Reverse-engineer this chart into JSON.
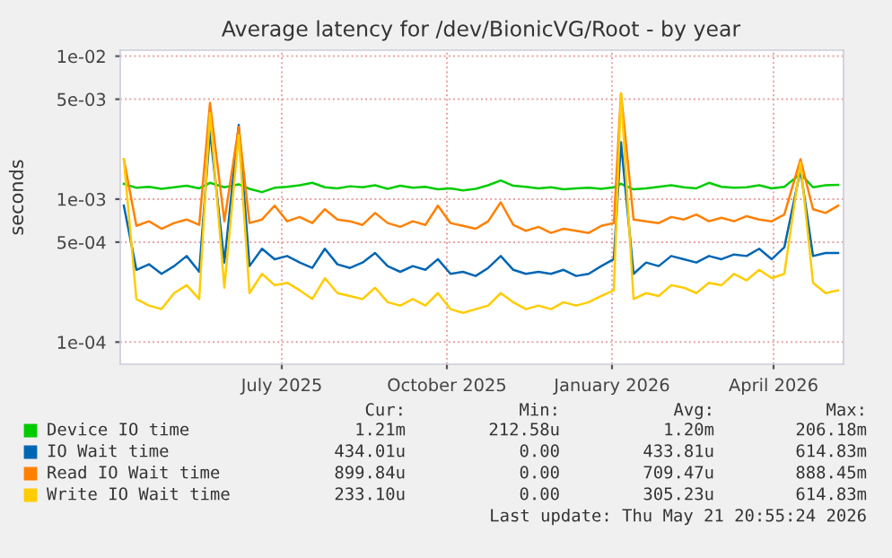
{
  "chart_data": {
    "type": "line",
    "title": "Average latency for /dev/BionicVG/Root - by year",
    "ylabel": "seconds",
    "log": "y",
    "grid": true,
    "legend": "bottom",
    "marker": "none",
    "line_style": "solid",
    "xlim": [
      "2025-04-02",
      "2026-05-10"
    ],
    "xticks": [
      {
        "value": "2025-07-01",
        "label": "July 2025"
      },
      {
        "value": "2025-10-01",
        "label": "October 2025"
      },
      {
        "value": "2026-01-01",
        "label": "January 2026"
      },
      {
        "value": "2026-04-01",
        "label": "April 2026"
      }
    ],
    "ylim": [
      7e-05,
      0.011
    ],
    "yticks": [
      {
        "value": 0.0001,
        "label": "1e-04"
      },
      {
        "value": 0.0005,
        "label": "5e-04"
      },
      {
        "value": 0.001,
        "label": "1e-03"
      },
      {
        "value": 0.005,
        "label": "5e-03"
      },
      {
        "value": 0.01,
        "label": "1e-02"
      }
    ],
    "x": [
      "2025-04-04",
      "2025-04-11",
      "2025-04-18",
      "2025-04-25",
      "2025-05-02",
      "2025-05-09",
      "2025-05-16",
      "2025-05-22",
      "2025-05-30",
      "2025-06-07",
      "2025-06-13",
      "2025-06-20",
      "2025-06-27",
      "2025-07-04",
      "2025-07-11",
      "2025-07-18",
      "2025-07-25",
      "2025-08-01",
      "2025-08-08",
      "2025-08-15",
      "2025-08-22",
      "2025-08-29",
      "2025-09-05",
      "2025-09-12",
      "2025-09-19",
      "2025-09-26",
      "2025-10-03",
      "2025-10-10",
      "2025-10-17",
      "2025-10-24",
      "2025-10-31",
      "2025-11-07",
      "2025-11-14",
      "2025-11-21",
      "2025-11-28",
      "2025-12-05",
      "2025-12-12",
      "2025-12-19",
      "2025-12-26",
      "2026-01-02",
      "2026-01-06",
      "2026-01-13",
      "2026-01-20",
      "2026-01-27",
      "2026-02-03",
      "2026-02-10",
      "2026-02-17",
      "2026-02-24",
      "2026-03-03",
      "2026-03-10",
      "2026-03-17",
      "2026-03-24",
      "2026-03-31",
      "2026-04-07",
      "2026-04-16",
      "2026-04-23",
      "2026-04-30",
      "2026-05-07"
    ],
    "series": [
      {
        "name": "Device IO time",
        "color": "#00cc00",
        "values": [
          0.00128,
          0.0012,
          0.00122,
          0.00118,
          0.00121,
          0.00124,
          0.00119,
          0.0013,
          0.00121,
          0.00127,
          0.00118,
          0.00112,
          0.0012,
          0.00122,
          0.00125,
          0.0013,
          0.00121,
          0.00119,
          0.00123,
          0.00121,
          0.00125,
          0.00118,
          0.00124,
          0.0012,
          0.00122,
          0.00117,
          0.00119,
          0.00115,
          0.00118,
          0.00125,
          0.00135,
          0.00124,
          0.00122,
          0.00119,
          0.00121,
          0.00117,
          0.00119,
          0.0012,
          0.00118,
          0.00121,
          0.00128,
          0.00117,
          0.00119,
          0.00122,
          0.00125,
          0.00121,
          0.00119,
          0.0013,
          0.00122,
          0.0012,
          0.00121,
          0.00125,
          0.00119,
          0.00122,
          0.0015,
          0.00121,
          0.00125,
          0.00126
        ]
      },
      {
        "name": "IO Wait time",
        "color": "#0066b3",
        "values": [
          0.0009,
          0.00032,
          0.00035,
          0.0003,
          0.00034,
          0.0004,
          0.00031,
          0.003,
          0.00036,
          0.0033,
          0.00034,
          0.00045,
          0.00038,
          0.0004,
          0.00036,
          0.00033,
          0.00045,
          0.00035,
          0.00033,
          0.00036,
          0.00042,
          0.00034,
          0.00031,
          0.00034,
          0.00032,
          0.00038,
          0.0003,
          0.00031,
          0.00029,
          0.00033,
          0.0004,
          0.00032,
          0.0003,
          0.00031,
          0.0003,
          0.00032,
          0.00029,
          0.0003,
          0.00034,
          0.00038,
          0.0025,
          0.0003,
          0.00036,
          0.00034,
          0.0004,
          0.00038,
          0.00036,
          0.0004,
          0.00038,
          0.00041,
          0.0004,
          0.00045,
          0.00038,
          0.00046,
          0.0016,
          0.0004,
          0.00042,
          0.00042
        ]
      },
      {
        "name": "Read IO Wait time",
        "color": "#ff8000",
        "values": [
          0.0019,
          0.00065,
          0.0007,
          0.00062,
          0.00068,
          0.00072,
          0.00066,
          0.0047,
          0.0007,
          0.0032,
          0.00068,
          0.00072,
          0.0009,
          0.0007,
          0.00075,
          0.00068,
          0.00085,
          0.00072,
          0.0007,
          0.00066,
          0.0008,
          0.00068,
          0.00064,
          0.0007,
          0.00066,
          0.0009,
          0.00068,
          0.00065,
          0.00062,
          0.0007,
          0.00095,
          0.00066,
          0.0006,
          0.00064,
          0.00058,
          0.00062,
          0.0006,
          0.00058,
          0.00065,
          0.00068,
          0.0055,
          0.00072,
          0.0007,
          0.00068,
          0.00075,
          0.00072,
          0.00078,
          0.0007,
          0.00074,
          0.0007,
          0.00076,
          0.00072,
          0.0007,
          0.00078,
          0.0019,
          0.00085,
          0.0008,
          0.0009
        ]
      },
      {
        "name": "Write IO Wait time",
        "color": "#ffcc00",
        "values": [
          0.0019,
          0.0002,
          0.00018,
          0.00017,
          0.00022,
          0.00025,
          0.0002,
          0.004,
          0.00024,
          0.0028,
          0.00022,
          0.0003,
          0.00025,
          0.00026,
          0.00023,
          0.0002,
          0.00028,
          0.00022,
          0.00021,
          0.0002,
          0.00024,
          0.00019,
          0.00018,
          0.0002,
          0.00018,
          0.00022,
          0.00017,
          0.00016,
          0.00017,
          0.00018,
          0.00022,
          0.00019,
          0.00017,
          0.00018,
          0.00017,
          0.00019,
          0.00018,
          0.00019,
          0.00021,
          0.00023,
          0.0055,
          0.0002,
          0.00022,
          0.00021,
          0.00025,
          0.00024,
          0.00022,
          0.00026,
          0.00025,
          0.0003,
          0.00027,
          0.00032,
          0.00028,
          0.0003,
          0.0018,
          0.00026,
          0.00022,
          0.00023
        ]
      }
    ],
    "annotations": [
      "Cur:",
      "Min:",
      "Avg:",
      "Max:",
      "1.21m",
      "212.58u",
      "1.20m",
      "206.18m",
      "434.01u",
      "0.00",
      "433.81u",
      "614.83m",
      "899.84u",
      "0.00",
      "709.47u",
      "888.45m",
      "233.10u",
      "0.00",
      "305.23u",
      "614.83m",
      "Last update: Thu May 21 20:55:24 2026"
    ]
  }
}
